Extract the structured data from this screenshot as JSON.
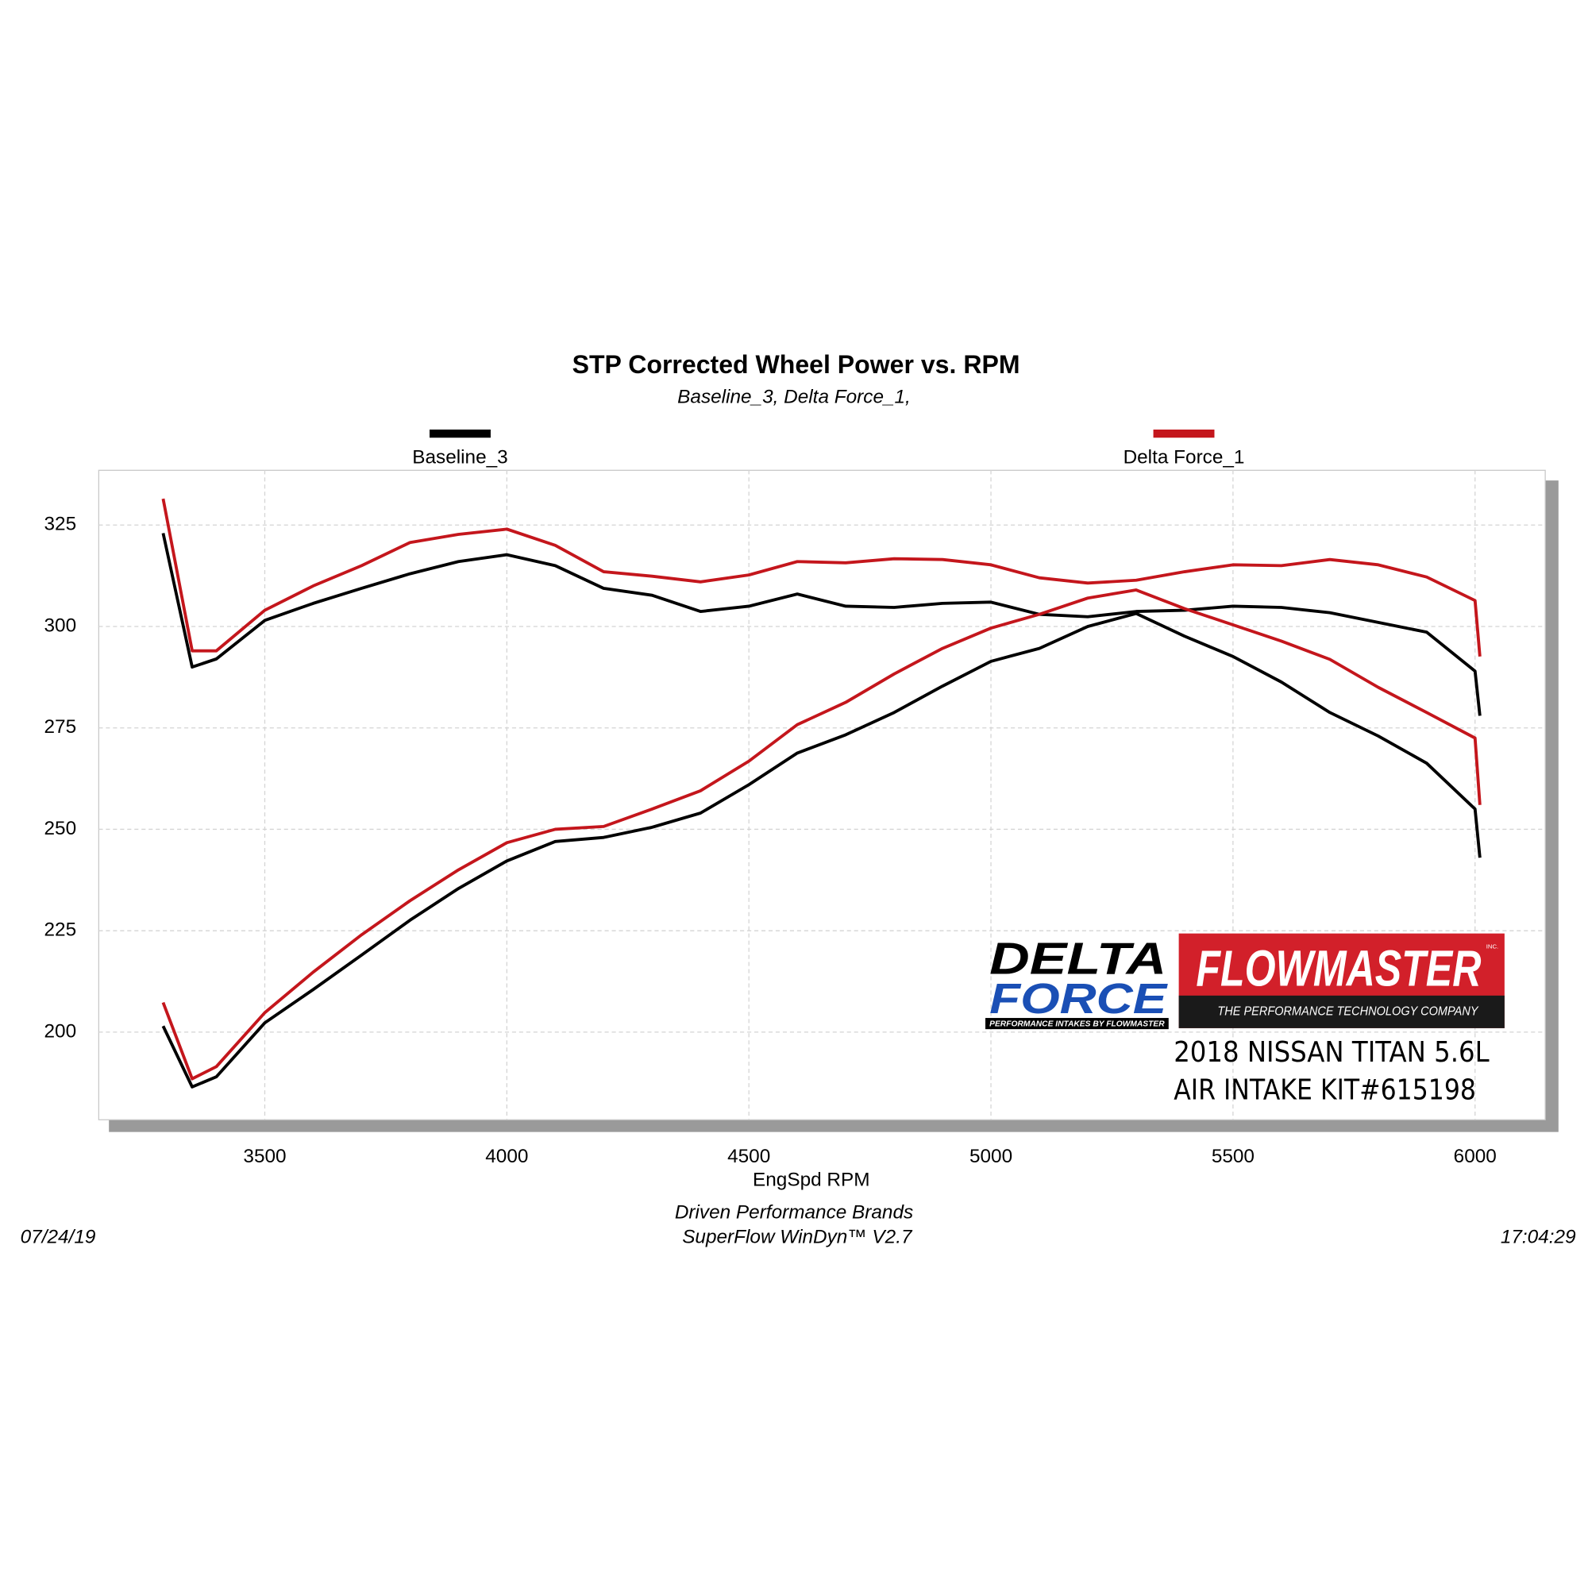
{
  "chart_data": {
    "type": "line",
    "title": "STP Corrected Wheel Power vs. RPM",
    "subtitle": "Baseline_3, Delta Force_1,",
    "x_label": "EngSpd  RPM",
    "footer": [
      "Driven Performance Brands",
      "SuperFlow WinDyn™ V2.7"
    ],
    "date": "07/24/19",
    "time": "17:04:29",
    "x": [
      3290,
      3350,
      3400,
      3500,
      3600,
      3700,
      3800,
      3900,
      4000,
      4100,
      4200,
      4300,
      4400,
      4500,
      4600,
      4700,
      4800,
      4900,
      5000,
      5100,
      5200,
      5300,
      5400,
      5500,
      5600,
      5700,
      5800,
      5900,
      6000,
      6010
    ],
    "series": [
      {
        "name": "Baseline_3",
        "color": "#000000",
        "curves": [
          [
            323,
            290,
            292,
            301.5,
            305.7,
            309.4,
            313,
            316,
            317.7,
            315,
            309.4,
            307.7,
            303.7,
            305,
            308,
            305,
            304.7,
            305.7,
            306,
            303,
            302.4,
            303.7,
            304,
            305,
            304.7,
            303.4,
            301,
            298.6,
            289,
            278
          ],
          [
            201.5,
            186.5,
            189,
            202.3,
            210.5,
            219,
            227.6,
            235.4,
            242.2,
            247,
            248,
            250.5,
            254,
            261,
            268.8,
            273.3,
            278.8,
            285.3,
            291.4,
            294.6,
            300,
            303.2,
            297.6,
            292.6,
            286.3,
            278.8,
            273,
            266.3,
            255,
            243
          ]
        ]
      },
      {
        "name": "Delta Force_1",
        "color": "#c4161c",
        "curves": [
          [
            331.5,
            294,
            294,
            304,
            310,
            315,
            320.7,
            322.7,
            324,
            320,
            313.5,
            312.4,
            311,
            312.7,
            316,
            315.7,
            316.7,
            316.5,
            315.2,
            312,
            310.7,
            311.4,
            313.5,
            315.2,
            315,
            316.5,
            315.2,
            312.2,
            306.4,
            292.6
          ],
          [
            207.3,
            188.5,
            191.5,
            204.8,
            214.8,
            224,
            232.4,
            240,
            246.7,
            250,
            250.7,
            255,
            259.5,
            266.8,
            275.8,
            281.3,
            288.3,
            294.6,
            299.6,
            303,
            307,
            309,
            304.4,
            300.4,
            296.4,
            291.9,
            285,
            278.8,
            272.5,
            256
          ]
        ]
      }
    ],
    "xlim": [
      3157,
      6145
    ],
    "ylim": [
      178.4,
      338.5
    ],
    "xticks": [
      3500,
      4000,
      4500,
      5000,
      5500,
      6000
    ],
    "yticks": [
      200,
      225,
      250,
      275,
      300,
      325
    ],
    "grid": true,
    "logo": {
      "delta": "DELTA",
      "force": "FORCE",
      "delta_tagline": "PERFORMANCE INTAKES BY FLOWMASTER",
      "flowmaster": "FLOWMASTER",
      "inc": "INC.",
      "flowmaster_tagline": "THE PERFORMANCE TECHNOLOGY COMPANY"
    },
    "caption": [
      "2018 NISSAN TITAN 5.6L",
      "AIR INTAKE KIT#615198"
    ]
  }
}
